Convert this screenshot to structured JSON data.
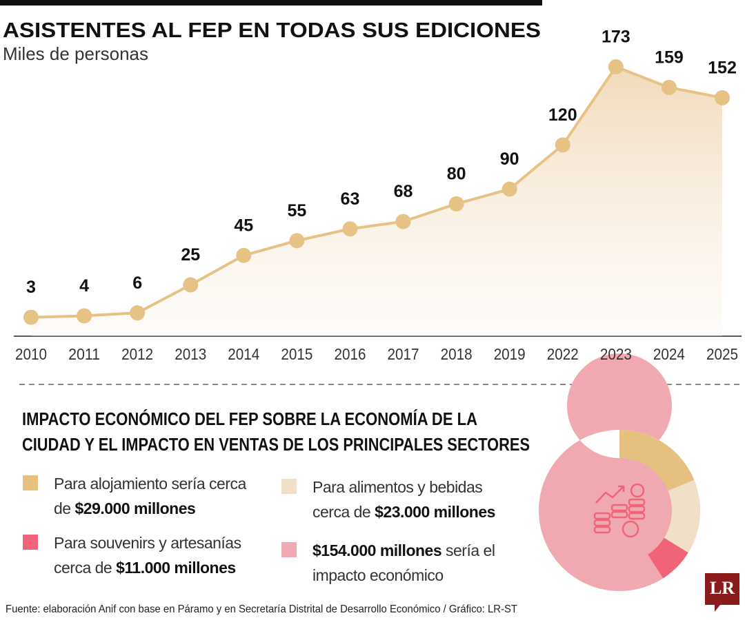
{
  "chart_data": [
    {
      "type": "line",
      "title": "ASISTENTES AL FEP EN TODAS SUS EDICIONES",
      "subtitle": "Miles de personas",
      "categories": [
        "2010",
        "2011",
        "2012",
        "2013",
        "2014",
        "2015",
        "2016",
        "2017",
        "2018",
        "2019",
        "2022",
        "2023",
        "2024",
        "2025"
      ],
      "values": [
        3,
        4,
        6,
        25,
        45,
        55,
        63,
        68,
        80,
        90,
        120,
        173,
        159,
        152
      ],
      "color": "#e6c285"
    },
    {
      "type": "donut",
      "title": [
        "IMPACTO ECONÓMICO DEL FEP SOBRE LA ECONOMÍA DE LA",
        "CIUDAD Y EL IMPACTO EN VENTAS DE LOS PRINCIPALES SECTORES"
      ],
      "items": [
        {
          "text": "Para alojamiento sería cerca de",
          "value": 29000,
          "value_label": "$29.000 millones",
          "color": "#e6c07e"
        },
        {
          "text": "Para alimentos y bebidas cerca de",
          "value": 23000,
          "value_label": "$23.000 millones",
          "color": "#f2dfc8"
        },
        {
          "text": "Para souvenirs y artesanías cerca de",
          "value": 11000,
          "value_label": "$11.000 millones",
          "color": "#ef6478"
        },
        {
          "value": 154000,
          "value_label": "$154.000 millones",
          "text_after": "sería el impacto económico",
          "color": "#f1a9b1"
        }
      ]
    }
  ],
  "source": "Fuente: elaboración Anif con base en Páramo y en Secretaría Distrital de Desarrollo Económico / Gráfico: LR-ST",
  "logo": "LR"
}
